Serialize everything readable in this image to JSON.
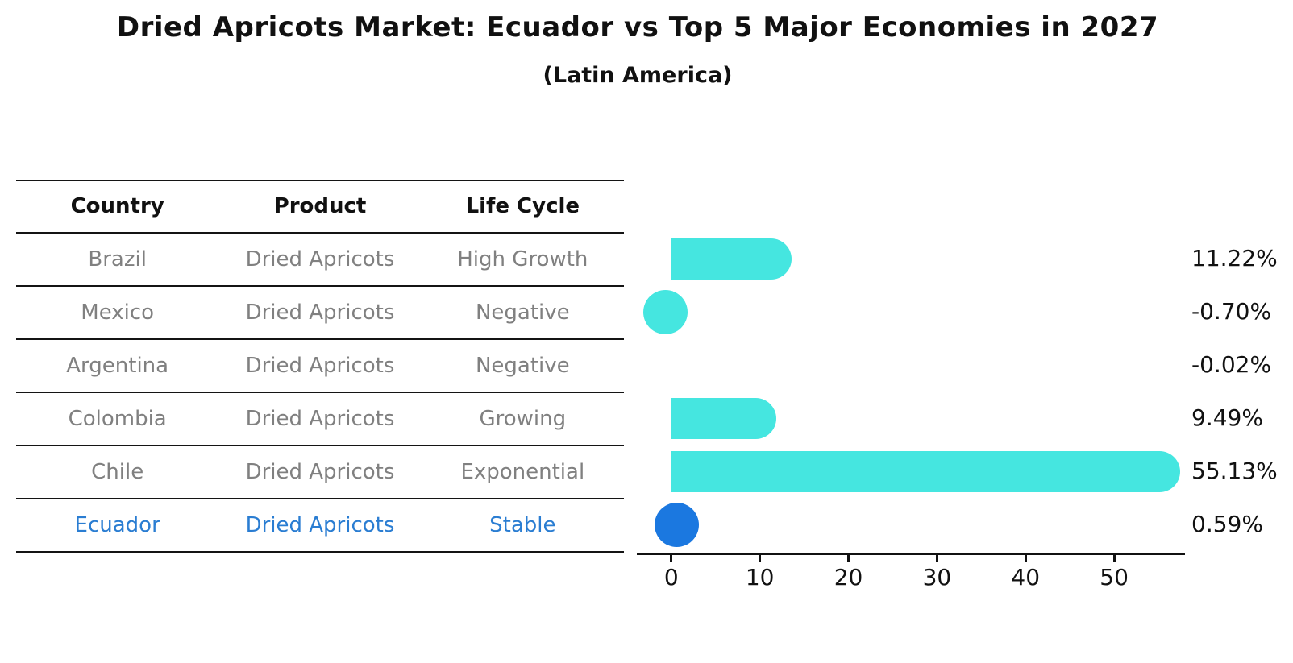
{
  "title": "Dried Apricots Market: Ecuador vs Top 5 Major Economies in 2027",
  "subtitle": "(Latin America)",
  "table": {
    "headers": [
      "Country",
      "Product",
      "Life Cycle"
    ],
    "rows": [
      {
        "country": "Brazil",
        "product": "Dried Apricots",
        "life_cycle": "High Growth",
        "highlight": false
      },
      {
        "country": "Mexico",
        "product": "Dried Apricots",
        "life_cycle": "Negative",
        "highlight": false
      },
      {
        "country": "Argentina",
        "product": "Dried Apricots",
        "life_cycle": "Negative",
        "highlight": false
      },
      {
        "country": "Colombia",
        "product": "Dried Apricots",
        "life_cycle": "Growing",
        "highlight": false
      },
      {
        "country": "Chile",
        "product": "Dried Apricots",
        "life_cycle": "Exponential",
        "highlight": false
      },
      {
        "country": "Ecuador",
        "product": "Dried Apricots",
        "life_cycle": "Stable",
        "highlight": true
      }
    ]
  },
  "chart_data": {
    "type": "bar",
    "orientation": "horizontal",
    "title": "Dried Apricots Market: Ecuador vs Top 5 Major Economies in 2027",
    "subtitle": "(Latin America)",
    "categories": [
      "Brazil",
      "Mexico",
      "Argentina",
      "Colombia",
      "Chile",
      "Ecuador"
    ],
    "values": [
      11.22,
      -0.7,
      -0.02,
      9.49,
      55.13,
      0.59
    ],
    "value_labels": [
      "11.22%",
      "-0.70%",
      "-0.02%",
      "9.49%",
      "55.13%",
      "0.59%"
    ],
    "xticks": [
      0,
      10,
      20,
      30,
      40,
      50
    ],
    "xlim": [
      -3.9,
      58
    ],
    "xlabel": "",
    "ylabel": "",
    "grid": false,
    "legend": null,
    "bar_color": "#45E6E0",
    "highlight_category": "Ecuador",
    "highlight_color": "#1B78E0"
  },
  "colors": {
    "header_text": "#111111",
    "row_text": "#808080",
    "highlight_text": "#2A7DD2",
    "axis": "#111111",
    "table_line": "#141414"
  }
}
